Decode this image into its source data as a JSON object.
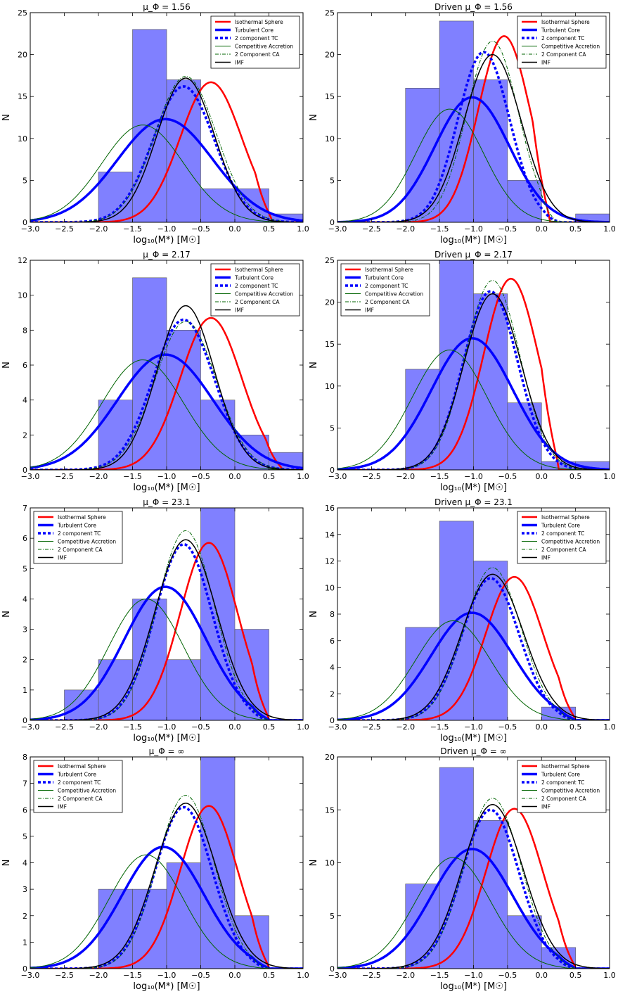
{
  "legend_labels": [
    "Isothermal Sphere",
    "Turbulent Core",
    "2 component TC",
    "Competitive Accretion",
    "2 Component CA",
    "IMF"
  ],
  "series_styles": [
    {
      "name": "Isothermal Sphere",
      "color": "#ff0000",
      "width": 2.5,
      "dash": ""
    },
    {
      "name": "Turbulent Core",
      "color": "#0000ff",
      "width": 3.5,
      "dash": ""
    },
    {
      "name": "2 component TC",
      "color": "#0000ff",
      "width": 3.5,
      "dash": "4,3"
    },
    {
      "name": "Competitive Accretion",
      "color": "#006400",
      "width": 1,
      "dash": ""
    },
    {
      "name": "2 Component CA",
      "color": "#006400",
      "width": 1,
      "dash": "5,2,1,2"
    },
    {
      "name": "IMF",
      "color": "#000000",
      "width": 1.5,
      "dash": ""
    }
  ],
  "hist_color": "#8080ff",
  "chart_data": [
    {
      "type": "bar",
      "title": "μ_Φ = 1.56",
      "xlabel": "log₁₀(M*) [M☉]",
      "ylabel": "N",
      "xlim": [
        -3,
        1
      ],
      "ylim": [
        0,
        25
      ],
      "xticks": [
        -3,
        -2.5,
        -2,
        -1.5,
        -1,
        -0.5,
        0,
        0.5,
        1
      ],
      "yticks": [
        0,
        5,
        10,
        15,
        20,
        25
      ],
      "bin_edges": [
        -3,
        -2.5,
        -2,
        -1.5,
        -1,
        -0.5,
        0,
        0.5,
        1
      ],
      "counts": [
        0,
        0,
        6,
        23,
        17,
        4,
        4,
        1
      ],
      "legend": "upper right",
      "curves": {
        "Isothermal Sphere": {
          "peak": 16.7,
          "center": -0.35,
          "sigma": 0.45,
          "cut": 0.55
        },
        "Turbulent Core": {
          "peak": 12.3,
          "center": -1.02,
          "sigma": 0.7
        },
        "2 component TC": {
          "peak": 16.2,
          "center": -0.75,
          "sigma": 0.45
        },
        "Competitive Accretion": {
          "peak": 11.6,
          "center": -1.35,
          "sigma": 0.6
        },
        "2 Component CA": {
          "peak": 17.4,
          "center": -0.72,
          "sigma": 0.45
        },
        "IMF": {
          "peak": 17.2,
          "center": -0.72,
          "sigma": 0.42
        }
      }
    },
    {
      "type": "bar",
      "title": "Driven μ_Φ = 1.56",
      "xlabel": "log₁₀(M*) [M☉]",
      "ylabel": "N",
      "xlim": [
        -3,
        1
      ],
      "ylim": [
        0,
        25
      ],
      "xticks": [
        -3,
        -2.5,
        -2,
        -1.5,
        -1,
        -0.5,
        0,
        0.5,
        1
      ],
      "yticks": [
        0,
        5,
        10,
        15,
        20,
        25
      ],
      "bin_edges": [
        -3,
        -2.5,
        -2,
        -1.5,
        -1,
        -0.5,
        0,
        0.5,
        1
      ],
      "counts": [
        0,
        0,
        16,
        24,
        17,
        5,
        0,
        1
      ],
      "legend": "upper right",
      "curves": {
        "Isothermal Sphere": {
          "peak": 22.2,
          "center": -0.55,
          "sigma": 0.38,
          "cut": 0.12
        },
        "Turbulent Core": {
          "peak": 14.9,
          "center": -1.02,
          "sigma": 0.55
        },
        "2 component TC": {
          "peak": 20.3,
          "center": -0.85,
          "sigma": 0.38,
          "cut": 0.28
        },
        "Competitive Accretion": {
          "peak": 13.5,
          "center": -1.35,
          "sigma": 0.5
        },
        "2 Component CA": {
          "peak": 21.6,
          "center": -0.72,
          "sigma": 0.38,
          "cut": 0.22
        },
        "IMF": {
          "peak": 20.0,
          "center": -0.72,
          "sigma": 0.42
        }
      }
    },
    {
      "type": "bar",
      "title": "μ_Φ = 2.17",
      "xlabel": "log₁₀(M*) [M☉]",
      "ylabel": "N",
      "xlim": [
        -3,
        1
      ],
      "ylim": [
        0,
        12
      ],
      "xticks": [
        -3,
        -2.5,
        -2,
        -1.5,
        -1,
        -0.5,
        0,
        0.5,
        1
      ],
      "yticks": [
        0,
        2,
        4,
        6,
        8,
        10,
        12
      ],
      "bin_edges": [
        -3,
        -2.5,
        -2,
        -1.5,
        -1,
        -0.5,
        0,
        0.5,
        1
      ],
      "counts": [
        0,
        0,
        4,
        11,
        8,
        4,
        2,
        1
      ],
      "legend": "upper right",
      "curves": {
        "Isothermal Sphere": {
          "peak": 8.7,
          "center": -0.35,
          "sigma": 0.45,
          "cut": 0.7
        },
        "Turbulent Core": {
          "peak": 6.6,
          "center": -1.02,
          "sigma": 0.7
        },
        "2 component TC": {
          "peak": 8.6,
          "center": -0.75,
          "sigma": 0.45
        },
        "Competitive Accretion": {
          "peak": 6.3,
          "center": -1.35,
          "sigma": 0.6
        },
        "2 Component CA": {
          "peak": 8.5,
          "center": -0.72,
          "sigma": 0.45
        },
        "IMF": {
          "peak": 9.4,
          "center": -0.72,
          "sigma": 0.42
        }
      }
    },
    {
      "type": "bar",
      "title": "Driven μ_Φ = 2.17",
      "xlabel": "log₁₀(M*) [M☉]",
      "ylabel": "N",
      "xlim": [
        -3,
        1
      ],
      "ylim": [
        0,
        25
      ],
      "xticks": [
        -3,
        -2.5,
        -2,
        -1.5,
        -1,
        -0.5,
        0,
        0.5,
        1
      ],
      "yticks": [
        0,
        5,
        10,
        15,
        20,
        25
      ],
      "bin_edges": [
        -3,
        -2.5,
        -2,
        -1.5,
        -1,
        -0.5,
        0,
        0.5,
        1
      ],
      "counts": [
        0,
        0,
        12,
        25,
        21,
        8,
        1,
        1
      ],
      "legend": "upper left",
      "curves": {
        "Isothermal Sphere": {
          "peak": 22.8,
          "center": -0.45,
          "sigma": 0.4,
          "cut": 0.25
        },
        "Turbulent Core": {
          "peak": 15.7,
          "center": -1.02,
          "sigma": 0.6
        },
        "2 component TC": {
          "peak": 21.3,
          "center": -0.75,
          "sigma": 0.4
        },
        "Competitive Accretion": {
          "peak": 14.3,
          "center": -1.35,
          "sigma": 0.55
        },
        "2 Component CA": {
          "peak": 22.6,
          "center": -0.72,
          "sigma": 0.4
        },
        "IMF": {
          "peak": 21.0,
          "center": -0.72,
          "sigma": 0.42
        }
      }
    },
    {
      "type": "bar",
      "title": "μ_Φ = 23.1",
      "xlabel": "log₁₀(M*) [M☉]",
      "ylabel": "N",
      "xlim": [
        -3,
        1
      ],
      "ylim": [
        0,
        7
      ],
      "xticks": [
        -3,
        -2.5,
        -2,
        -1.5,
        -1,
        -0.5,
        0,
        0.5,
        1
      ],
      "yticks": [
        0,
        1,
        2,
        3,
        4,
        5,
        6,
        7
      ],
      "bin_edges": [
        -3,
        -2.5,
        -2,
        -1.5,
        -1,
        -0.5,
        0,
        0.5,
        1
      ],
      "counts": [
        0,
        1,
        2,
        4,
        2,
        7,
        3,
        0
      ],
      "legend": "upper left",
      "curves": {
        "Isothermal Sphere": {
          "peak": 5.85,
          "center": -0.38,
          "sigma": 0.42,
          "cut": 0.5
        },
        "Turbulent Core": {
          "peak": 4.4,
          "center": -1.02,
          "sigma": 0.6,
          "cut": 0.5
        },
        "2 component TC": {
          "peak": 5.8,
          "center": -0.75,
          "sigma": 0.42,
          "cut": 0.5
        },
        "Competitive Accretion": {
          "peak": 4.0,
          "center": -1.3,
          "sigma": 0.55,
          "cut": 0.5
        },
        "2 Component CA": {
          "peak": 6.25,
          "center": -0.72,
          "sigma": 0.42,
          "cut": 0.5
        },
        "IMF": {
          "peak": 5.95,
          "center": -0.72,
          "sigma": 0.45
        }
      }
    },
    {
      "type": "bar",
      "title": "Driven μ_Φ = 23.1",
      "xlabel": "log₁₀(M*) [M☉]",
      "ylabel": "N",
      "xlim": [
        -3,
        1
      ],
      "ylim": [
        0,
        16
      ],
      "xticks": [
        -3,
        -2.5,
        -2,
        -1.5,
        -1,
        -0.5,
        0,
        0.5,
        1
      ],
      "yticks": [
        0,
        2,
        4,
        6,
        8,
        10,
        12,
        14,
        16
      ],
      "bin_edges": [
        -3,
        -2.5,
        -2,
        -1.5,
        -1,
        -0.5,
        0,
        0.5,
        1
      ],
      "counts": [
        0,
        0,
        7,
        15,
        12,
        0,
        1,
        0
      ],
      "legend": "upper right",
      "curves": {
        "Isothermal Sphere": {
          "peak": 10.8,
          "center": -0.4,
          "sigma": 0.42,
          "cut": 0.5
        },
        "Turbulent Core": {
          "peak": 8.1,
          "center": -1.02,
          "sigma": 0.6,
          "cut": 0.5
        },
        "2 component TC": {
          "peak": 10.7,
          "center": -0.75,
          "sigma": 0.42,
          "cut": 0.5
        },
        "Competitive Accretion": {
          "peak": 7.5,
          "center": -1.3,
          "sigma": 0.55,
          "cut": 0.5
        },
        "2 Component CA": {
          "peak": 11.5,
          "center": -0.72,
          "sigma": 0.42,
          "cut": 0.5
        },
        "IMF": {
          "peak": 11.0,
          "center": -0.72,
          "sigma": 0.45
        }
      }
    },
    {
      "type": "bar",
      "title": "μ_Φ = ∞",
      "xlabel": "log₁₀(M*) [M☉]",
      "ylabel": "N",
      "xlim": [
        -3,
        1
      ],
      "ylim": [
        0,
        8
      ],
      "xticks": [
        -3,
        -2.5,
        -2,
        -1.5,
        -1,
        -0.5,
        0,
        0.5,
        1
      ],
      "yticks": [
        0,
        1,
        2,
        3,
        4,
        5,
        6,
        7,
        8
      ],
      "bin_edges": [
        -3,
        -2.5,
        -2,
        -1.5,
        -1,
        -0.5,
        0,
        0.5,
        1
      ],
      "counts": [
        0,
        0,
        3,
        3,
        4,
        8,
        2,
        0
      ],
      "legend": "upper left",
      "curves": {
        "Isothermal Sphere": {
          "peak": 6.15,
          "center": -0.38,
          "sigma": 0.42,
          "cut": 0.5
        },
        "Turbulent Core": {
          "peak": 4.6,
          "center": -1.05,
          "sigma": 0.6,
          "cut": 0.5
        },
        "2 component TC": {
          "peak": 6.1,
          "center": -0.75,
          "sigma": 0.42,
          "cut": 0.5
        },
        "Competitive Accretion": {
          "peak": 4.3,
          "center": -1.3,
          "sigma": 0.55,
          "cut": 0.5
        },
        "2 Component CA": {
          "peak": 6.55,
          "center": -0.72,
          "sigma": 0.42,
          "cut": 0.5
        },
        "IMF": {
          "peak": 6.25,
          "center": -0.72,
          "sigma": 0.45
        }
      }
    },
    {
      "type": "bar",
      "title": "Driven μ_Φ = ∞",
      "xlabel": "log₁₀(M*) [M☉]",
      "ylabel": "N",
      "xlim": [
        -3,
        1
      ],
      "ylim": [
        0,
        20
      ],
      "xticks": [
        -3,
        -2.5,
        -2,
        -1.5,
        -1,
        -0.5,
        0,
        0.5,
        1
      ],
      "yticks": [
        0,
        5,
        10,
        15,
        20
      ],
      "bin_edges": [
        -3,
        -2.5,
        -2,
        -1.5,
        -1,
        -0.5,
        0,
        0.5,
        1
      ],
      "counts": [
        0,
        0,
        8,
        19,
        14,
        5,
        2,
        0
      ],
      "legend": "upper right",
      "curves": {
        "Isothermal Sphere": {
          "peak": 15.1,
          "center": -0.4,
          "sigma": 0.42,
          "cut": 0.5
        },
        "Turbulent Core": {
          "peak": 11.3,
          "center": -1.02,
          "sigma": 0.6,
          "cut": 0.5
        },
        "2 component TC": {
          "peak": 15.0,
          "center": -0.75,
          "sigma": 0.42,
          "cut": 0.5
        },
        "Competitive Accretion": {
          "peak": 10.5,
          "center": -1.3,
          "sigma": 0.55,
          "cut": 0.5
        },
        "2 Component CA": {
          "peak": 16.1,
          "center": -0.72,
          "sigma": 0.42,
          "cut": 0.5
        },
        "IMF": {
          "peak": 15.5,
          "center": -0.72,
          "sigma": 0.45
        }
      }
    }
  ]
}
